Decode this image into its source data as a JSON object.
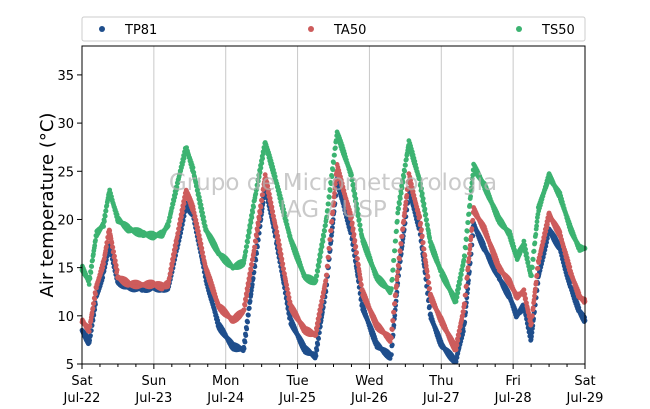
{
  "chart_data": {
    "type": "scatter",
    "ylabel": "Air temperature (°C)",
    "xlabel": "",
    "ylim": [
      5,
      38
    ],
    "yticks": [
      5,
      10,
      15,
      20,
      25,
      30,
      35
    ],
    "xlim": [
      0,
      7
    ],
    "xticks": [
      {
        "x": 0,
        "day": "Sat",
        "date": "Jul-22"
      },
      {
        "x": 1,
        "day": "Sun",
        "date": "Jul-23"
      },
      {
        "x": 2,
        "day": "Mon",
        "date": "Jul-24"
      },
      {
        "x": 3,
        "day": "Tue",
        "date": "Jul-25"
      },
      {
        "x": 4,
        "day": "Wed",
        "date": "Jul-26"
      },
      {
        "x": 5,
        "day": "Thu",
        "date": "Jul-27"
      },
      {
        "x": 6,
        "day": "Fri",
        "date": "Jul-28"
      },
      {
        "x": 7,
        "day": "Sat",
        "date": "Jul-29"
      }
    ],
    "grid": "vertical",
    "legend_position": "top",
    "watermark": [
      "Grupo de Micrometeorologia",
      "IAG / USP"
    ],
    "series": [
      {
        "name": "TP81",
        "color": "#1f4e8c",
        "points": [
          [
            0,
            8.5
          ],
          [
            0.1,
            7.2
          ],
          [
            0.2,
            12.0
          ],
          [
            0.3,
            14.5
          ],
          [
            0.38,
            17.5
          ],
          [
            0.5,
            13.5
          ],
          [
            0.65,
            13.0
          ],
          [
            0.85,
            12.8
          ],
          [
            1.0,
            13.0
          ],
          [
            1.12,
            12.8
          ],
          [
            1.2,
            13.0
          ],
          [
            1.32,
            17.0
          ],
          [
            1.45,
            21.5
          ],
          [
            1.55,
            20.5
          ],
          [
            1.72,
            14.0
          ],
          [
            1.9,
            9.0
          ],
          [
            2.1,
            6.8
          ],
          [
            2.25,
            6.5
          ],
          [
            2.4,
            15.0
          ],
          [
            2.55,
            23.5
          ],
          [
            2.7,
            18.0
          ],
          [
            2.9,
            9.5
          ],
          [
            3.1,
            6.5
          ],
          [
            3.25,
            5.8
          ],
          [
            3.4,
            13.0
          ],
          [
            3.55,
            24.0
          ],
          [
            3.75,
            18.5
          ],
          [
            3.9,
            11.0
          ],
          [
            4.1,
            7.0
          ],
          [
            4.3,
            5.7
          ],
          [
            4.4,
            14.0
          ],
          [
            4.55,
            23.0
          ],
          [
            4.7,
            19.0
          ],
          [
            4.85,
            10.0
          ],
          [
            5.0,
            7.0
          ],
          [
            5.2,
            5.2
          ],
          [
            5.32,
            9.0
          ],
          [
            5.45,
            19.5
          ],
          [
            5.6,
            17.0
          ],
          [
            5.8,
            14.0
          ],
          [
            5.95,
            12.0
          ],
          [
            6.05,
            10.0
          ],
          [
            6.15,
            11.0
          ],
          [
            6.25,
            7.5
          ],
          [
            6.35,
            14.0
          ],
          [
            6.5,
            19.0
          ],
          [
            6.65,
            17.0
          ],
          [
            6.8,
            13.0
          ],
          [
            6.92,
            10.5
          ],
          [
            7.0,
            9.5
          ]
        ]
      },
      {
        "name": "TA50",
        "color": "#cd5c5c",
        "points": [
          [
            0,
            9.5
          ],
          [
            0.1,
            8.5
          ],
          [
            0.2,
            13.0
          ],
          [
            0.3,
            15.5
          ],
          [
            0.38,
            19.0
          ],
          [
            0.5,
            14.0
          ],
          [
            0.65,
            13.3
          ],
          [
            0.85,
            13.2
          ],
          [
            1.0,
            13.3
          ],
          [
            1.12,
            13.0
          ],
          [
            1.2,
            13.3
          ],
          [
            1.32,
            18.0
          ],
          [
            1.45,
            23.0
          ],
          [
            1.55,
            21.0
          ],
          [
            1.72,
            15.0
          ],
          [
            1.9,
            11.0
          ],
          [
            2.1,
            9.5
          ],
          [
            2.25,
            10.5
          ],
          [
            2.4,
            17.0
          ],
          [
            2.55,
            24.5
          ],
          [
            2.7,
            19.0
          ],
          [
            2.9,
            11.0
          ],
          [
            3.1,
            8.5
          ],
          [
            3.25,
            8.0
          ],
          [
            3.4,
            14.0
          ],
          [
            3.55,
            25.5
          ],
          [
            3.75,
            20.0
          ],
          [
            3.9,
            12.5
          ],
          [
            4.1,
            9.0
          ],
          [
            4.3,
            7.5
          ],
          [
            4.4,
            15.0
          ],
          [
            4.55,
            24.5
          ],
          [
            4.7,
            20.0
          ],
          [
            4.85,
            12.0
          ],
          [
            5.0,
            9.5
          ],
          [
            5.2,
            6.5
          ],
          [
            5.32,
            11.0
          ],
          [
            5.45,
            21.0
          ],
          [
            5.6,
            19.0
          ],
          [
            5.8,
            15.0
          ],
          [
            5.95,
            13.5
          ],
          [
            6.05,
            12.0
          ],
          [
            6.15,
            12.5
          ],
          [
            6.25,
            9.0
          ],
          [
            6.35,
            15.5
          ],
          [
            6.5,
            20.5
          ],
          [
            6.65,
            18.5
          ],
          [
            6.8,
            14.5
          ],
          [
            6.92,
            12.0
          ],
          [
            7.0,
            11.5
          ]
        ]
      },
      {
        "name": "TS50",
        "color": "#3cb371",
        "points": [
          [
            0,
            15.0
          ],
          [
            0.1,
            13.5
          ],
          [
            0.2,
            18.5
          ],
          [
            0.3,
            19.5
          ],
          [
            0.38,
            23.0
          ],
          [
            0.5,
            20.0
          ],
          [
            0.65,
            19.0
          ],
          [
            0.85,
            18.5
          ],
          [
            1.0,
            18.3
          ],
          [
            1.12,
            18.5
          ],
          [
            1.2,
            19.5
          ],
          [
            1.32,
            23.5
          ],
          [
            1.45,
            27.5
          ],
          [
            1.55,
            25.0
          ],
          [
            1.72,
            19.0
          ],
          [
            1.9,
            16.5
          ],
          [
            2.1,
            15.0
          ],
          [
            2.25,
            15.5
          ],
          [
            2.4,
            22.0
          ],
          [
            2.55,
            28.0
          ],
          [
            2.7,
            24.0
          ],
          [
            2.9,
            18.0
          ],
          [
            3.1,
            14.0
          ],
          [
            3.25,
            13.5
          ],
          [
            3.4,
            20.0
          ],
          [
            3.55,
            29.0
          ],
          [
            3.75,
            24.5
          ],
          [
            3.9,
            18.0
          ],
          [
            4.1,
            14.0
          ],
          [
            4.3,
            12.5
          ],
          [
            4.4,
            21.0
          ],
          [
            4.55,
            28.0
          ],
          [
            4.7,
            24.0
          ],
          [
            4.85,
            17.5
          ],
          [
            5.0,
            14.5
          ],
          [
            5.2,
            11.5
          ],
          [
            5.32,
            16.0
          ],
          [
            5.45,
            25.5
          ],
          [
            5.6,
            23.5
          ],
          [
            5.8,
            20.0
          ],
          [
            5.95,
            18.5
          ],
          [
            6.05,
            16.0
          ],
          [
            6.15,
            17.5
          ],
          [
            6.25,
            14.0
          ],
          [
            6.35,
            21.0
          ],
          [
            6.5,
            24.5
          ],
          [
            6.65,
            22.5
          ],
          [
            6.8,
            19.0
          ],
          [
            6.92,
            17.0
          ],
          [
            7.0,
            17.0
          ]
        ]
      }
    ]
  }
}
